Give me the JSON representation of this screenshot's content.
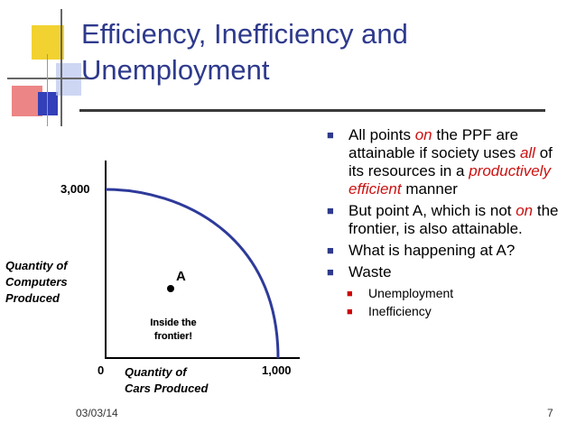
{
  "slide": {
    "title_line1": "Efficiency, Inefficiency and",
    "title_line2": "Unemployment",
    "bullets": [
      {
        "parts": [
          "All points ",
          "on",
          " the PPF are attainable if society uses ",
          "all",
          " of its resources in a ",
          "productively efficient",
          " manner"
        ]
      },
      {
        "parts": [
          "But point A, which is not ",
          "on",
          " the frontier, is also attainable."
        ]
      },
      {
        "text": "What is happening at A?"
      },
      {
        "text": "Waste",
        "sub": [
          "Unemployment",
          "Inefficiency"
        ]
      }
    ],
    "footer_date": "03/03/14",
    "page_number": "7"
  },
  "graph": {
    "y_tick": "3,000",
    "x_tick": "1,000",
    "origin": "0",
    "y_axis_label_lines": [
      "Quantity of",
      "Computers",
      "Produced"
    ],
    "x_axis_label_lines": [
      "Quantity of",
      "Cars Produced"
    ],
    "point_label": "A",
    "inside_label_lines": [
      "Inside the",
      "frontier!"
    ]
  },
  "colors": {
    "title": "#2e3a8c",
    "emphasis": "#cc1111",
    "deco_yellow": "#f2d230",
    "deco_red": "#e05050",
    "deco_blue": "#3340b8"
  }
}
